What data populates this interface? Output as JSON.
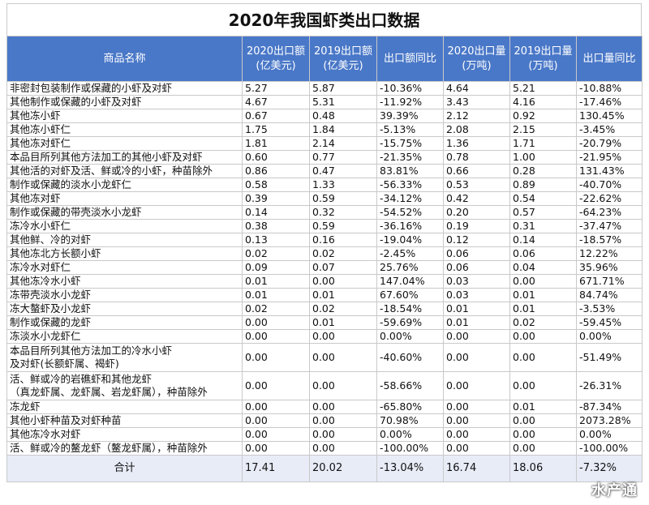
{
  "title": "2020年我国虾类出口数据",
  "headers": {
    "name": "商品名称",
    "v2020_line1": "2020出口额",
    "v2020_line2": "(亿美元)",
    "v2019_line1": "2019出口额",
    "v2019_line2": "(亿美元)",
    "v_yoy": "出口额同比",
    "q2020_line1": "2020出口量",
    "q2020_line2": "(万吨)",
    "q2019_line1": "2019出口量",
    "q2019_line2": "(万吨)",
    "q_yoy": "出口量同比"
  },
  "rows": [
    {
      "name": [
        "非密封包装制作或保藏的小虾及对虾"
      ],
      "v2020": "5.27",
      "v2019": "5.87",
      "vyoy": "-10.36%",
      "q2020": "4.64",
      "q2019": "5.21",
      "qyoy": "-10.88%"
    },
    {
      "name": [
        "其他制作或保藏的小虾及对虾"
      ],
      "v2020": "4.67",
      "v2019": "5.31",
      "vyoy": "-11.92%",
      "q2020": "3.43",
      "q2019": "4.16",
      "qyoy": "-17.46%"
    },
    {
      "name": [
        "其他冻小虾"
      ],
      "v2020": "0.67",
      "v2019": "0.48",
      "vyoy": "39.39%",
      "q2020": "2.12",
      "q2019": "0.92",
      "qyoy": "130.45%"
    },
    {
      "name": [
        "其他冻小虾仁"
      ],
      "v2020": "1.75",
      "v2019": "1.84",
      "vyoy": "-5.13%",
      "q2020": "2.08",
      "q2019": "2.15",
      "qyoy": "-3.45%"
    },
    {
      "name": [
        "其他冻对虾仁"
      ],
      "v2020": "1.81",
      "v2019": "2.14",
      "vyoy": "-15.75%",
      "q2020": "1.36",
      "q2019": "1.71",
      "qyoy": "-20.79%"
    },
    {
      "name": [
        "本品目所列其他方法加工的其他小虾及对虾"
      ],
      "v2020": "0.60",
      "v2019": "0.77",
      "vyoy": "-21.35%",
      "q2020": "0.78",
      "q2019": "1.00",
      "qyoy": "-21.95%"
    },
    {
      "name": [
        "其他活的对虾及活、鲜或冷的小虾，种苗除外"
      ],
      "v2020": "0.86",
      "v2019": "0.47",
      "vyoy": "83.81%",
      "q2020": "0.66",
      "q2019": "0.28",
      "qyoy": "131.43%"
    },
    {
      "name": [
        "制作或保藏的淡水小龙虾仁"
      ],
      "v2020": "0.58",
      "v2019": "1.33",
      "vyoy": "-56.33%",
      "q2020": "0.53",
      "q2019": "0.89",
      "qyoy": "-40.70%"
    },
    {
      "name": [
        "其他冻对虾"
      ],
      "v2020": "0.39",
      "v2019": "0.59",
      "vyoy": "-34.12%",
      "q2020": "0.42",
      "q2019": "0.54",
      "qyoy": "-22.62%"
    },
    {
      "name": [
        "制作或保藏的带壳淡水小龙虾"
      ],
      "v2020": "0.14",
      "v2019": "0.32",
      "vyoy": "-54.52%",
      "q2020": "0.20",
      "q2019": "0.57",
      "qyoy": "-64.23%"
    },
    {
      "name": [
        "冻冷水小虾仁"
      ],
      "v2020": "0.38",
      "v2019": "0.59",
      "vyoy": "-36.16%",
      "q2020": "0.19",
      "q2019": "0.31",
      "qyoy": "-37.47%"
    },
    {
      "name": [
        "其他鲜、冷的对虾"
      ],
      "v2020": "0.13",
      "v2019": "0.16",
      "vyoy": "-19.04%",
      "q2020": "0.12",
      "q2019": "0.14",
      "qyoy": "-18.57%"
    },
    {
      "name": [
        "其他冻北方长额小虾"
      ],
      "v2020": "0.02",
      "v2019": "0.02",
      "vyoy": "-2.45%",
      "q2020": "0.06",
      "q2019": "0.06",
      "qyoy": "12.22%"
    },
    {
      "name": [
        "冻冷水对虾仁"
      ],
      "v2020": "0.09",
      "v2019": "0.07",
      "vyoy": "25.76%",
      "q2020": "0.06",
      "q2019": "0.04",
      "qyoy": "35.96%"
    },
    {
      "name": [
        "其他冻冷水小虾"
      ],
      "v2020": "0.01",
      "v2019": "0.00",
      "vyoy": "147.04%",
      "q2020": "0.03",
      "q2019": "0.00",
      "qyoy": "671.71%"
    },
    {
      "name": [
        "冻带壳淡水小龙虾"
      ],
      "v2020": "0.01",
      "v2019": "0.01",
      "vyoy": "67.60%",
      "q2020": "0.03",
      "q2019": "0.01",
      "qyoy": "84.74%"
    },
    {
      "name": [
        "冻大螯虾及小龙虾"
      ],
      "v2020": "0.02",
      "v2019": "0.02",
      "vyoy": "-18.54%",
      "q2020": "0.01",
      "q2019": "0.01",
      "qyoy": "-3.53%"
    },
    {
      "name": [
        "制作或保藏的龙虾"
      ],
      "v2020": "0.00",
      "v2019": "0.01",
      "vyoy": "-59.69%",
      "q2020": "0.01",
      "q2019": "0.02",
      "qyoy": "-59.45%"
    },
    {
      "name": [
        "冻淡水小龙虾仁"
      ],
      "v2020": "0.00",
      "v2019": "0.00",
      "vyoy": "0.00%",
      "q2020": "0.00",
      "q2019": "0.00",
      "qyoy": "0.00%"
    },
    {
      "name": [
        "本品目所列其他方法加工的冷水小虾",
        "及对虾(长额虾属、褐虾)"
      ],
      "v2020": "0.00",
      "v2019": "0.00",
      "vyoy": "-40.60%",
      "q2020": "0.00",
      "q2019": "0.00",
      "qyoy": "-51.49%"
    },
    {
      "name": [
        "活、鲜或冷的岩礁虾和其他龙虾",
        "（真龙虾属、龙虾属、岩龙虾属），种苗除外"
      ],
      "v2020": "0.00",
      "v2019": "0.00",
      "vyoy": "-58.66%",
      "q2020": "0.00",
      "q2019": "0.00",
      "qyoy": "-26.31%"
    },
    {
      "name": [
        "冻龙虾"
      ],
      "v2020": "0.00",
      "v2019": "0.00",
      "vyoy": "-65.80%",
      "q2020": "0.00",
      "q2019": "0.01",
      "qyoy": "-87.34%"
    },
    {
      "name": [
        "其他小虾种苗及对虾种苗"
      ],
      "v2020": "0.00",
      "v2019": "0.00",
      "vyoy": "70.98%",
      "q2020": "0.00",
      "q2019": "0.00",
      "qyoy": "2073.28%"
    },
    {
      "name": [
        "其他冻冷水对虾"
      ],
      "v2020": "0.00",
      "v2019": "0.00",
      "vyoy": "0.00%",
      "q2020": "0.00",
      "q2019": "0.00",
      "qyoy": "0.00%"
    },
    {
      "name": [
        "活、鲜或冷的鳌龙虾（鳌龙虾属），种苗除外"
      ],
      "v2020": "0.00",
      "v2019": "0.00",
      "vyoy": "-100.00%",
      "q2020": "0.00",
      "q2019": "0.00",
      "qyoy": "-100.00%"
    }
  ],
  "total": {
    "name": "合计",
    "v2020": "17.41",
    "v2019": "20.02",
    "vyoy": "-13.04%",
    "q2020": "16.74",
    "q2019": "18.06",
    "qyoy": "-7.32%"
  },
  "watermark": "水产通"
}
